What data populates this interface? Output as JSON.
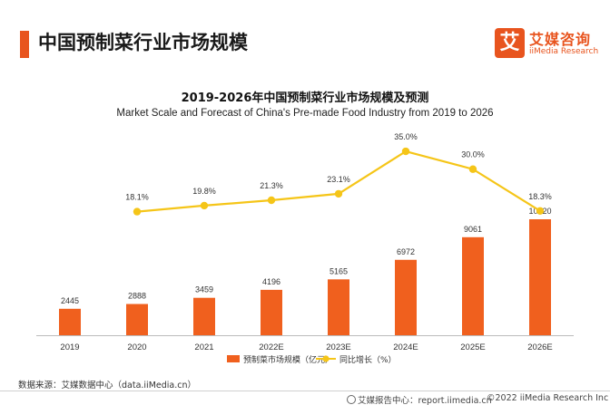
{
  "header": {
    "title": "中国预制菜行业市场规模"
  },
  "logo": {
    "cn": "艾媒咨询",
    "en": "iiMedia Research",
    "mark": "艾"
  },
  "chart_data": {
    "type": "bar",
    "title": "2019-2026年中国预制菜行业市场规模及预测",
    "subtitle": "Market Scale and Forecast of China's Pre-made Food Industry from 2019 to 2026",
    "categories": [
      "2019",
      "2020",
      "2021",
      "2022E",
      "2023E",
      "2024E",
      "2025E",
      "2026E"
    ],
    "series": [
      {
        "name": "预制菜市场规模（亿元）",
        "type": "bar",
        "color": "#f0601e",
        "values": [
          2445,
          2888,
          3459,
          4196,
          5165,
          6972,
          9061,
          10720
        ],
        "labels": [
          "2445",
          "2888",
          "3459",
          "4196",
          "5165",
          "6972",
          "9061",
          "10720"
        ]
      },
      {
        "name": "同比增长（%）",
        "type": "line",
        "color": "#f5c518",
        "values": [
          null,
          18.1,
          19.8,
          21.3,
          23.1,
          35.0,
          30.0,
          18.3
        ],
        "labels": [
          null,
          "18.1%",
          "19.8%",
          "21.3%",
          "23.1%",
          "35.0%",
          "30.0%",
          "18.3%"
        ]
      }
    ],
    "xlabel": "",
    "ylabel": "",
    "grid": false
  },
  "footer": {
    "source": "数据来源：艾媒数据中心（data.iiMedia.cn）",
    "report": "艾媒报告中心：report.iimedia.cn",
    "copyright": "©2022  iiMedia Research  Inc"
  }
}
